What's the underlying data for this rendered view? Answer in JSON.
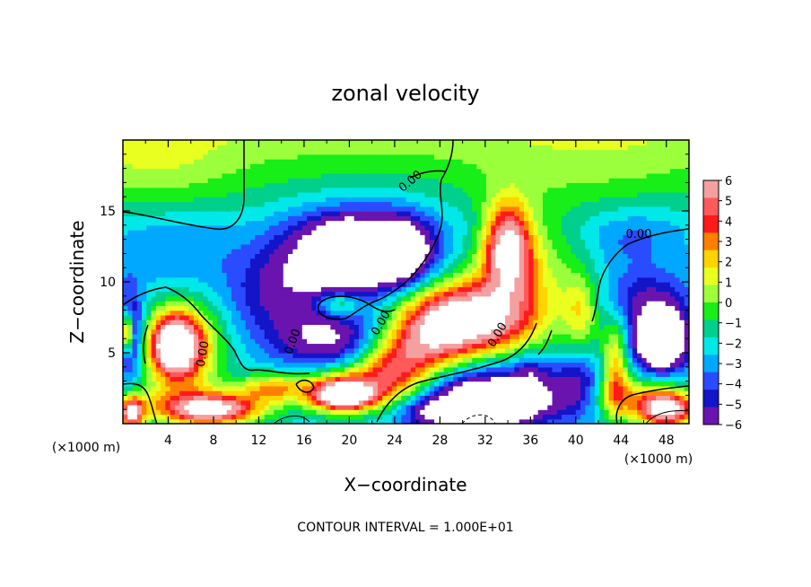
{
  "chart_data": {
    "type": "heatmap",
    "title": "zonal velocity",
    "xlabel": "X−coordinate",
    "ylabel": "Z−coordinate",
    "x_unit_left": "(×1000 m)",
    "x_unit_right": "(×1000 m)",
    "xlim": [
      0,
      50
    ],
    "ylim": [
      0,
      20
    ],
    "x_ticks": [
      4,
      8,
      12,
      16,
      20,
      24,
      28,
      32,
      36,
      40,
      44,
      48
    ],
    "y_ticks": [
      5,
      10,
      15
    ],
    "colorbar": {
      "ticks": [
        "6",
        "5",
        "4",
        "3",
        "2",
        "1",
        "0",
        "−1",
        "−2",
        "−3",
        "−4",
        "−5",
        "−6"
      ],
      "range": [
        -6,
        6
      ],
      "colors": [
        "#f4a0a0",
        "#ff5a5a",
        "#ff1a1a",
        "#ff7f00",
        "#ffd400",
        "#e8ff20",
        "#9cff3c",
        "#18ee18",
        "#00d08c",
        "#00e8e8",
        "#00a8ff",
        "#2a4cff",
        "#1414c8",
        "#6a14b0"
      ]
    },
    "contour_labels": [
      "0.00",
      "0.00",
      "0.00",
      "0.00",
      "0.00",
      "0.00"
    ],
    "contour_interval_text": "CONTOUR INTERVAL =  1.000E+01",
    "field_blobs": [
      {
        "x": 5.5,
        "z": 5.5,
        "rx": 3.2,
        "rz": 3.0,
        "v": 5.5
      },
      {
        "x": 4.5,
        "z": 5.5,
        "rx": 2.0,
        "rz": 2.0,
        "v": 9.0
      },
      {
        "x": 0.5,
        "z": 6.5,
        "rx": 1.2,
        "rz": 3.0,
        "v": -5.0
      },
      {
        "x": 0.4,
        "z": 6.5,
        "rx": 0.5,
        "rz": 1.5,
        "v": 9.0
      },
      {
        "x": 18.0,
        "z": 11.5,
        "rx": 4.5,
        "rz": 3.0,
        "v": -5.0
      },
      {
        "x": 19.5,
        "z": 12.0,
        "rx": 2.0,
        "rz": 1.8,
        "v": -9.0
      },
      {
        "x": 24.0,
        "z": 12.2,
        "rx": 2.8,
        "rz": 2.0,
        "v": -9.0
      },
      {
        "x": 22.5,
        "z": 12.5,
        "rx": 6.0,
        "rz": 3.5,
        "v": -2.5
      },
      {
        "x": 18.0,
        "z": 6.0,
        "rx": 4.5,
        "rz": 2.0,
        "v": -4.5
      },
      {
        "x": 19.0,
        "z": 8.5,
        "rx": 2.0,
        "rz": 1.0,
        "v": 4.0
      },
      {
        "x": 34.0,
        "z": 12.5,
        "rx": 2.0,
        "rz": 3.0,
        "v": 8.0
      },
      {
        "x": 35.5,
        "z": 10.0,
        "rx": 5.0,
        "rz": 5.0,
        "v": 3.5
      },
      {
        "x": 30.5,
        "z": 7.5,
        "rx": 5.0,
        "rz": 2.5,
        "v": 9.0
      },
      {
        "x": 27.0,
        "z": 6.0,
        "rx": 4.0,
        "rz": 2.5,
        "v": 5.0
      },
      {
        "x": 24.0,
        "z": 4.0,
        "rx": 3.5,
        "rz": 2.0,
        "v": 5.0
      },
      {
        "x": 32.0,
        "z": 2.0,
        "rx": 6.0,
        "rz": 2.5,
        "v": -5.0
      },
      {
        "x": 33.0,
        "z": 1.5,
        "rx": 3.5,
        "rz": 1.2,
        "v": -9.0
      },
      {
        "x": 28.0,
        "z": 0.8,
        "rx": 3.0,
        "rz": 1.0,
        "v": -4.0
      },
      {
        "x": 43.5,
        "z": 4.0,
        "rx": 1.2,
        "rz": 3.5,
        "v": 4.5
      },
      {
        "x": 40.5,
        "z": 8.0,
        "rx": 1.5,
        "rz": 2.5,
        "v": 3.0
      },
      {
        "x": 40.0,
        "z": 2.5,
        "rx": 2.5,
        "rz": 2.0,
        "v": -4.0
      },
      {
        "x": 47.5,
        "z": 6.0,
        "rx": 2.8,
        "rz": 2.5,
        "v": -5.0
      },
      {
        "x": 47.5,
        "z": 6.0,
        "rx": 1.6,
        "rz": 1.6,
        "v": -9.0
      },
      {
        "x": 46.0,
        "z": 9.0,
        "rx": 4.0,
        "rz": 2.0,
        "v": -2.5
      },
      {
        "x": 20.0,
        "z": 2.5,
        "rx": 5.0,
        "rz": 1.5,
        "v": 5.0
      },
      {
        "x": 19.5,
        "z": 2.0,
        "rx": 2.5,
        "rz": 1.0,
        "v": 9.0
      },
      {
        "x": 8.0,
        "z": 1.0,
        "rx": 4.0,
        "rz": 1.0,
        "v": 8.0
      },
      {
        "x": 5.0,
        "z": 1.5,
        "rx": 6.0,
        "rz": 1.5,
        "v": 3.0
      },
      {
        "x": 13.0,
        "z": 2.5,
        "rx": 3.0,
        "rz": 1.0,
        "v": 4.0
      },
      {
        "x": 0.8,
        "z": 0.8,
        "rx": 1.0,
        "rz": 1.0,
        "v": 9.0
      },
      {
        "x": 48.0,
        "z": 1.0,
        "rx": 2.5,
        "rz": 1.2,
        "v": 9.0
      },
      {
        "x": 45.0,
        "z": 2.0,
        "rx": 5.0,
        "rz": 1.5,
        "v": 3.5
      },
      {
        "x": 3.0,
        "z": 18.0,
        "rx": 7.0,
        "rz": 3.0,
        "v": 1.3
      },
      {
        "x": 42.0,
        "z": 18.0,
        "rx": 9.0,
        "rz": 3.0,
        "v": 0.8
      },
      {
        "x": 45.0,
        "z": 13.0,
        "rx": 4.0,
        "rz": 2.0,
        "v": -1.5
      },
      {
        "x": 13.0,
        "z": 9.0,
        "rx": 4.0,
        "rz": 3.0,
        "v": -2.5
      },
      {
        "x": 5.0,
        "z": 12.0,
        "rx": 6.0,
        "rz": 2.5,
        "v": -1.2
      },
      {
        "x": 36.0,
        "z": 3.5,
        "rx": 1.5,
        "rz": 1.5,
        "v": -2.5
      }
    ]
  }
}
